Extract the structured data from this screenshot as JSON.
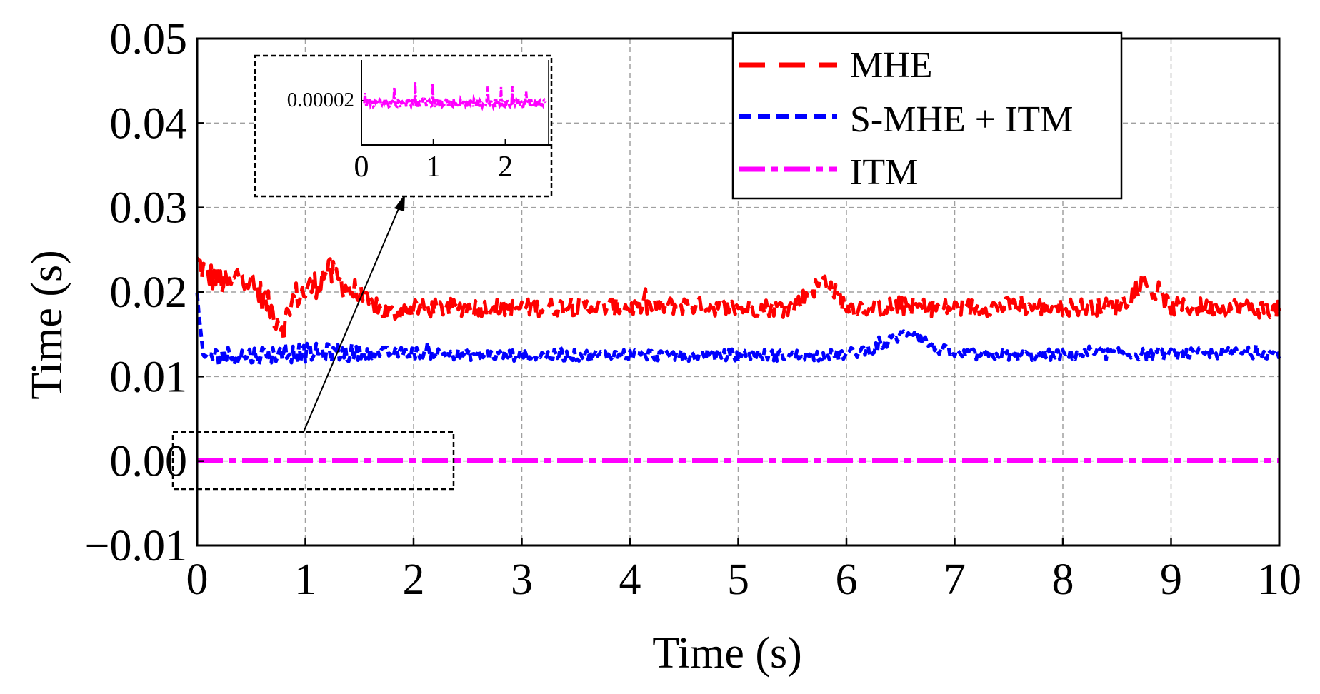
{
  "chart_data": {
    "type": "line",
    "title": "",
    "xlabel": "Time (s)",
    "ylabel": "Time (s)",
    "xlim": [
      0,
      10
    ],
    "ylim": [
      -0.01,
      0.05
    ],
    "xticks": [
      "0",
      "1",
      "2",
      "3",
      "4",
      "5",
      "6",
      "7",
      "8",
      "9",
      "10"
    ],
    "yticks": [
      "−0.01",
      "0.00",
      "0.01",
      "0.02",
      "0.03",
      "0.04",
      "0.05"
    ],
    "grid": true,
    "legend_position": "top-right",
    "series": [
      {
        "name": "MHE",
        "color": "#ff0000",
        "style": "dash",
        "x": [
          0.0,
          0.1,
          0.2,
          0.3,
          0.4,
          0.5,
          0.6,
          0.7,
          0.8,
          0.9,
          1.0,
          1.1,
          1.2,
          1.3,
          1.4,
          1.5,
          1.6,
          1.7,
          1.8,
          1.9,
          2.0,
          2.5,
          3.0,
          3.5,
          4.0,
          4.5,
          5.0,
          5.5,
          5.8,
          6.0,
          6.5,
          7.0,
          7.5,
          8.0,
          8.5,
          8.75,
          9.0,
          9.5,
          10.0
        ],
        "y": [
          0.0235,
          0.022,
          0.0215,
          0.0205,
          0.0225,
          0.021,
          0.0195,
          0.0175,
          0.016,
          0.0195,
          0.02,
          0.021,
          0.0225,
          0.0215,
          0.0205,
          0.0195,
          0.0185,
          0.0178,
          0.0175,
          0.0178,
          0.018,
          0.0182,
          0.0181,
          0.0183,
          0.0182,
          0.0184,
          0.0181,
          0.0182,
          0.0215,
          0.0182,
          0.0183,
          0.0181,
          0.0183,
          0.0182,
          0.0183,
          0.021,
          0.0182,
          0.0183,
          0.0178
        ]
      },
      {
        "name": "S-MHE + ITM",
        "color": "#0000ff",
        "style": "short-dash",
        "x": [
          0.0,
          0.05,
          0.1,
          0.2,
          0.5,
          1.0,
          1.5,
          2.0,
          2.5,
          3.0,
          3.5,
          4.0,
          4.5,
          5.0,
          5.5,
          6.0,
          6.3,
          6.6,
          6.8,
          7.0,
          7.5,
          8.0,
          8.5,
          9.0,
          9.5,
          10.0
        ],
        "y": [
          0.0195,
          0.012,
          0.0125,
          0.0125,
          0.0125,
          0.0128,
          0.0128,
          0.0128,
          0.0126,
          0.0125,
          0.0125,
          0.0126,
          0.0125,
          0.0126,
          0.0125,
          0.0126,
          0.0135,
          0.0155,
          0.0135,
          0.0126,
          0.0125,
          0.0126,
          0.0127,
          0.0126,
          0.0128,
          0.0128
        ]
      },
      {
        "name": "ITM",
        "color": "#ff00ff",
        "style": "dash-dot",
        "x": [
          0,
          10
        ],
        "y": [
          2e-05,
          2e-05
        ]
      }
    ],
    "inset": {
      "ytick_label": "0.00002",
      "xticks": [
        "0",
        "1",
        "2"
      ],
      "xlim": [
        0,
        2.6
      ],
      "source_region": "x 0 to 2.4, y near 0.00"
    }
  }
}
